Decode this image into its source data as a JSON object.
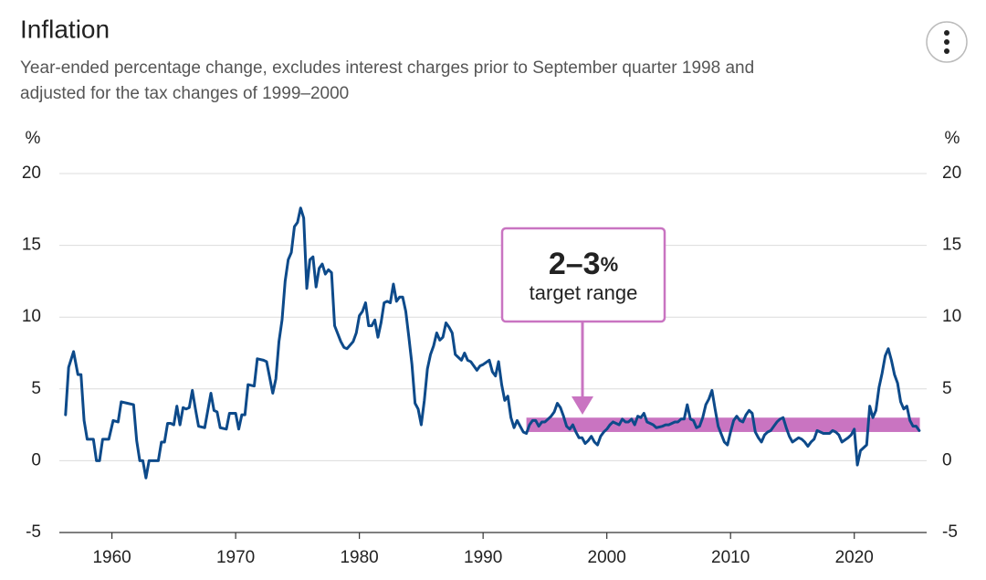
{
  "chart_data": {
    "type": "line",
    "title": "Inflation",
    "subtitle": [
      "Year-ended percentage change, excludes interest charges prior to September quarter 1998 and",
      "adjusted for the tax changes of 1999–2000"
    ],
    "y_unit": "%",
    "y2_unit": "%",
    "xlim": [
      1955.75,
      2025.85
    ],
    "xticks": [
      1960,
      1970,
      1980,
      1990,
      2000,
      2010,
      2020
    ],
    "ylim": [
      -5,
      20
    ],
    "yticks": [
      -5,
      0,
      5,
      10,
      15,
      20
    ],
    "y2lim": [
      -5,
      20
    ],
    "y2ticks": [
      -5,
      0,
      5,
      10,
      15,
      20
    ],
    "grid": true,
    "target_band": {
      "x": [
        1993.5,
        2025.3
      ],
      "y": [
        2,
        3
      ],
      "color": "#c974c1"
    },
    "annotation": {
      "value": "2–3",
      "unit": "%",
      "text": "target range"
    },
    "x": [
      1956.25,
      1956.5,
      1956.9,
      1957.25,
      1957.5,
      1957.75,
      1958,
      1958.5,
      1958.75,
      1959,
      1959.25,
      1959.75,
      1960.1,
      1960.5,
      1960.75,
      1961.25,
      1961.75,
      1962,
      1962.25,
      1962.5,
      1962.75,
      1963,
      1963.5,
      1963.75,
      1964,
      1964.25,
      1964.5,
      1964.75,
      1965,
      1965.25,
      1965.5,
      1965.75,
      1966,
      1966.25,
      1966.5,
      1966.75,
      1967,
      1967.5,
      1967.75,
      1968,
      1968.25,
      1968.5,
      1968.75,
      1969.25,
      1969.5,
      1970,
      1970.25,
      1970.5,
      1970.75,
      1971,
      1971.5,
      1971.75,
      1972.25,
      1972.5,
      1972.75,
      1973,
      1973.25,
      1973.5,
      1973.75,
      1974,
      1974.25,
      1974.5,
      1974.75,
      1975,
      1975.25,
      1975.5,
      1975.75,
      1976,
      1976.25,
      1976.5,
      1976.75,
      1977,
      1977.25,
      1977.5,
      1977.75,
      1978,
      1978.5,
      1978.75,
      1979,
      1979.5,
      1979.75,
      1980,
      1980.25,
      1980.5,
      1980.75,
      1981,
      1981.25,
      1981.5,
      1981.75,
      1982,
      1982.25,
      1982.5,
      1982.75,
      1983,
      1983.25,
      1983.5,
      1983.75,
      1984,
      1984.25,
      1984.5,
      1984.75,
      1985,
      1985.25,
      1985.5,
      1985.75,
      1986,
      1986.25,
      1986.5,
      1986.75,
      1987,
      1987.25,
      1987.5,
      1987.75,
      1988,
      1988.25,
      1988.5,
      1988.75,
      1989,
      1989.5,
      1989.75,
      1990,
      1990.5,
      1990.75,
      1991,
      1991.25,
      1991.5,
      1991.75,
      1992,
      1992.25,
      1992.5,
      1992.75,
      1993,
      1993.25,
      1993.5,
      1993.75,
      1994,
      1994.25,
      1994.5,
      1994.75,
      1995,
      1995.5,
      1995.75,
      1996,
      1996.25,
      1996.5,
      1996.75,
      1997,
      1997.25,
      1997.5,
      1997.75,
      1998,
      1998.25,
      1998.5,
      1998.75,
      1999,
      1999.25,
      1999.5,
      1999.75,
      2000,
      2000.25,
      2000.5,
      2000.75,
      2001,
      2001.25,
      2001.5,
      2001.75,
      2002,
      2002.25,
      2002.5,
      2002.75,
      2003,
      2003.25,
      2003.5,
      2003.75,
      2004,
      2004.5,
      2004.75,
      2005,
      2005.5,
      2005.75,
      2006,
      2006.25,
      2006.5,
      2006.75,
      2007,
      2007.25,
      2007.5,
      2007.75,
      2008,
      2008.25,
      2008.5,
      2008.75,
      2009,
      2009.5,
      2009.75,
      2010,
      2010.25,
      2010.5,
      2010.75,
      2011,
      2011.25,
      2011.5,
      2011.75,
      2012,
      2012.25,
      2012.5,
      2012.75,
      2013,
      2013.25,
      2013.5,
      2013.75,
      2014,
      2014.25,
      2014.5,
      2014.75,
      2015,
      2015.5,
      2015.75,
      2016,
      2016.25,
      2016.5,
      2016.75,
      2017,
      2017.5,
      2017.75,
      2018,
      2018.25,
      2018.5,
      2018.75,
      2019,
      2019.5,
      2019.75,
      2020,
      2020.25,
      2020.5,
      2020.75,
      2021,
      2021.25,
      2021.5,
      2021.75,
      2022,
      2022.25,
      2022.5,
      2022.75,
      2023,
      2023.25,
      2023.5,
      2023.75,
      2024,
      2024.25,
      2024.5,
      2024.75,
      2025,
      2025.25
    ],
    "series": [
      {
        "name": "Inflation",
        "color": "#0d4a8a",
        "values": [
          3.2,
          6.5,
          7.6,
          6,
          6,
          2.8,
          1.5,
          1.5,
          0,
          0,
          1.5,
          1.5,
          2.8,
          2.7,
          4.1,
          4.0,
          3.9,
          1.4,
          0,
          0,
          -1.2,
          0,
          0,
          0,
          1.3,
          1.3,
          2.6,
          2.6,
          2.5,
          3.8,
          2.5,
          3.7,
          3.6,
          3.7,
          4.9,
          3.6,
          2.4,
          2.3,
          3.5,
          4.7,
          3.5,
          3.4,
          2.3,
          2.2,
          3.3,
          3.3,
          2.2,
          3.2,
          3.2,
          5.3,
          5.2,
          7.1,
          7.0,
          6.9,
          5.8,
          4.7,
          5.7,
          8.3,
          9.8,
          12.5,
          14.0,
          14.5,
          16.3,
          16.6,
          17.6,
          16.9,
          12.0,
          14.0,
          14.2,
          12.1,
          13.4,
          13.7,
          13.0,
          13.3,
          13.1,
          9.4,
          8.3,
          7.9,
          7.8,
          8.3,
          8.9,
          10.1,
          10.4,
          11.0,
          9.4,
          9.4,
          9.8,
          8.6,
          9.6,
          11.0,
          11.1,
          11.0,
          12.3,
          11.1,
          11.4,
          11.4,
          10.4,
          8.6,
          6.7,
          4.0,
          3.6,
          2.5,
          4.2,
          6.4,
          7.4,
          8.0,
          8.9,
          8.4,
          8.6,
          9.6,
          9.3,
          8.9,
          7.4,
          7.2,
          7.0,
          7.5,
          7.0,
          6.9,
          6.3,
          6.6,
          6.7,
          7.0,
          6.2,
          5.9,
          6.9,
          5.3,
          4.2,
          4.5,
          3.0,
          2.3,
          2.8,
          2.4,
          2.0,
          1.9,
          2.5,
          2.8,
          2.8,
          2.4,
          2.7,
          2.7,
          3.1,
          3.4,
          4.0,
          3.7,
          3.1,
          2.4,
          2.2,
          2.5,
          2.0,
          1.6,
          1.6,
          1.2,
          1.4,
          1.7,
          1.3,
          1.1,
          1.7,
          2.0,
          2.2,
          2.5,
          2.7,
          2.6,
          2.5,
          2.9,
          2.7,
          2.7,
          2.9,
          2.5,
          3.1,
          3.0,
          3.3,
          2.7,
          2.6,
          2.5,
          2.3,
          2.4,
          2.5,
          2.5,
          2.7,
          2.7,
          2.9,
          2.9,
          3.9,
          2.9,
          2.8,
          2.3,
          2.4,
          3.0,
          3.9,
          4.3,
          4.9,
          3.6,
          2.4,
          1.3,
          1.1,
          2.0,
          2.8,
          3.1,
          2.8,
          2.7,
          3.2,
          3.5,
          3.3,
          2.0,
          1.6,
          1.3,
          1.8,
          2.0,
          2.1,
          2.4,
          2.7,
          2.9,
          3.0,
          2.3,
          1.7,
          1.3,
          1.6,
          1.5,
          1.3,
          1.0,
          1.3,
          1.5,
          2.1,
          1.9,
          1.9,
          1.9,
          2.1,
          2.0,
          1.8,
          1.3,
          1.6,
          1.8,
          2.2,
          -0.3,
          0.7,
          0.9,
          1.1,
          3.8,
          3.0,
          3.5,
          5.1,
          6.1,
          7.3,
          7.8,
          7.0,
          6.0,
          5.4,
          4.1,
          3.6,
          3.8,
          2.8,
          2.4,
          2.4,
          2.1
        ]
      }
    ]
  }
}
